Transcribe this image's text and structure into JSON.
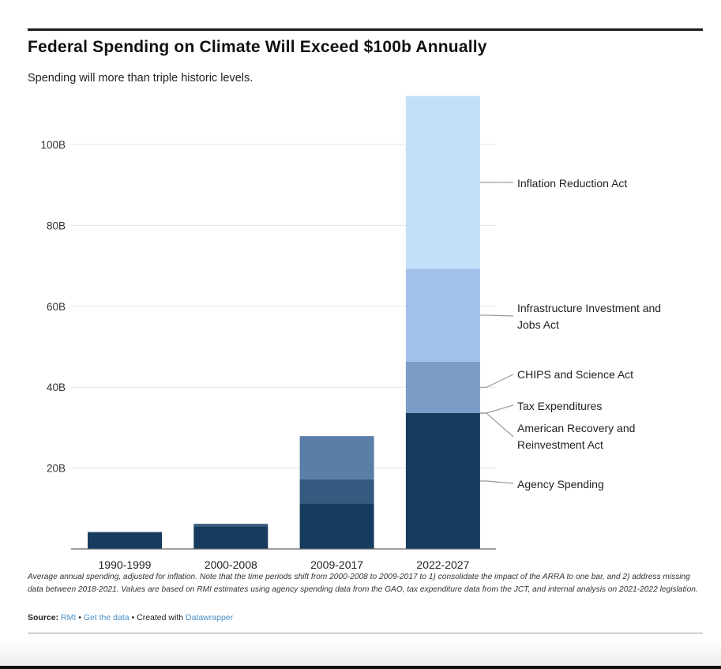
{
  "header": {
    "title": "Federal Spending on Climate Will Exceed $100b Annually",
    "subtitle": "Spending will more than triple historic levels."
  },
  "chart_data": {
    "type": "bar",
    "stacked": true,
    "title": "Federal Spending on Climate Will Exceed $100b Annually",
    "subtitle": "Spending will more than triple historic levels.",
    "xlabel": "",
    "ylabel": "",
    "ylim": [
      0,
      112
    ],
    "y_ticks": [
      20,
      40,
      60,
      80,
      100
    ],
    "y_tick_labels": [
      "20B",
      "40B",
      "60B",
      "80B",
      "100B"
    ],
    "grid": true,
    "categories": [
      "1990-1999",
      "2000-2008",
      "2009-2017",
      "2022-2027"
    ],
    "series": [
      {
        "name": "Agency Spending",
        "color": "#163b5f",
        "values": [
          4.0,
          5.6,
          11.3,
          33.6
        ]
      },
      {
        "name": "American Recovery and Reinvestment Act",
        "color": "#2f5379",
        "values": [
          0,
          0,
          0,
          0
        ]
      },
      {
        "name": "Tax Expenditures",
        "color": "#35597f",
        "values": [
          0.2,
          0.6,
          5.9,
          0
        ]
      },
      {
        "name": "CHIPS and Science Act",
        "color": "#7b9cc6",
        "values": [
          0,
          0,
          0,
          12.7
        ]
      },
      {
        "name": "Infrastructure Investment and Jobs Act",
        "color": "#a3c0ea",
        "values": [
          0,
          0,
          0,
          23.0
        ]
      },
      {
        "name": "Inflation Reduction Act",
        "color": "#c4e0f8",
        "values": [
          0,
          0,
          0,
          42.7
        ]
      }
    ],
    "bar3_top_layer": {
      "name": "American Recovery and Reinvestment Act",
      "color": "#5a7ea7",
      "value": 10.7
    },
    "labels": [
      {
        "series": "Inflation Reduction Act",
        "lines": [
          "Inflation Reduction Act"
        ]
      },
      {
        "series": "Infrastructure Investment and Jobs Act",
        "lines": [
          "Infrastructure Investment and",
          "Jobs Act"
        ]
      },
      {
        "series": "CHIPS and Science Act",
        "lines": [
          "CHIPS and Science Act"
        ]
      },
      {
        "series": "Tax Expenditures",
        "lines": [
          "Tax Expenditures"
        ]
      },
      {
        "series": "American Recovery and Reinvestment Act",
        "lines": [
          "American Recovery and",
          "Reinvestment Act"
        ]
      },
      {
        "series": "Agency Spending",
        "lines": [
          "Agency Spending"
        ]
      }
    ],
    "legend": "direct labels right of last bar"
  },
  "footer": {
    "note": "Average annual spending, adjusted for inflation. Note that the time periods shift from 2000-2008 to 2009-2017 to 1) consolidate the impact of the ARRA to one bar, and 2) address missing data between 2018-2021. Values are based on RMI estimates using agency spending data from the GAO, tax expenditure data from the JCT, and internal analysis on 2021-2022 legislation.",
    "source_label": "Source:",
    "source_link": "RMI",
    "sep": "•",
    "data_link": "Get the data",
    "created_text": "Created with",
    "tool_link": "Datawrapper"
  }
}
